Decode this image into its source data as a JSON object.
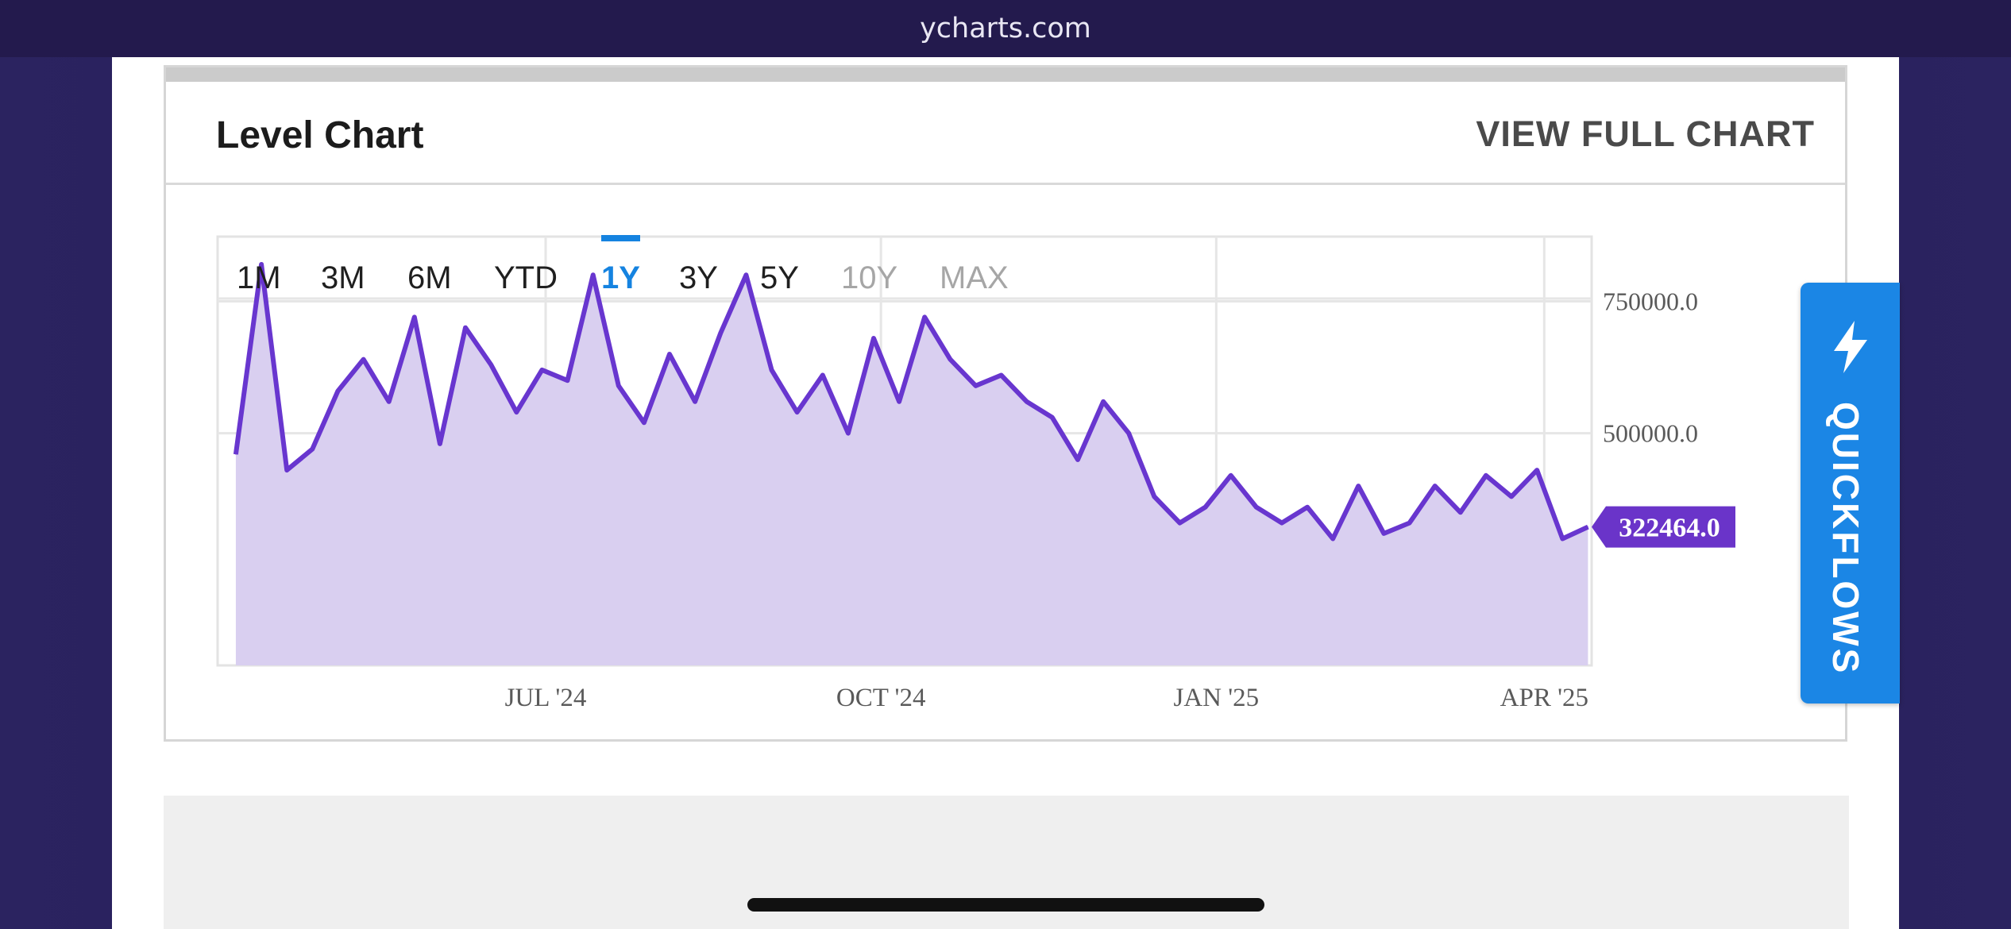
{
  "browser": {
    "url_label": "ycharts.com"
  },
  "card": {
    "title": "Level Chart",
    "view_full_label": "VIEW FULL CHART"
  },
  "range_tabs": [
    {
      "label": "1M",
      "state": "normal"
    },
    {
      "label": "3M",
      "state": "normal"
    },
    {
      "label": "6M",
      "state": "normal"
    },
    {
      "label": "YTD",
      "state": "normal"
    },
    {
      "label": "1Y",
      "state": "active"
    },
    {
      "label": "3Y",
      "state": "normal"
    },
    {
      "label": "5Y",
      "state": "normal"
    },
    {
      "label": "10Y",
      "state": "disabled"
    },
    {
      "label": "MAX",
      "state": "disabled"
    }
  ],
  "quickflows": {
    "label": "QUICKFLOWS",
    "icon": "lightning-bolt-icon"
  },
  "colors": {
    "line": "#6836cf",
    "fill": "#d9cff0",
    "accent": "#1583e0",
    "badge": "#6a34c9"
  },
  "chart_data": {
    "type": "area",
    "x_tick_labels": [
      "JUL '24",
      "OCT '24",
      "JAN '25",
      "APR '25"
    ],
    "y_tick_labels": [
      "750000.0",
      "500000.0"
    ],
    "ylim": [
      60000,
      820000
    ],
    "x_range": [
      "2024-04",
      "2025-04"
    ],
    "current_value_label": "322464.0",
    "grid": true,
    "x": [
      "2024-04-07",
      "2024-04-14",
      "2024-04-21",
      "2024-04-28",
      "2024-05-05",
      "2024-05-12",
      "2024-05-19",
      "2024-05-26",
      "2024-06-02",
      "2024-06-09",
      "2024-06-16",
      "2024-06-23",
      "2024-06-30",
      "2024-07-07",
      "2024-07-14",
      "2024-07-21",
      "2024-07-28",
      "2024-08-04",
      "2024-08-11",
      "2024-08-18",
      "2024-08-25",
      "2024-09-01",
      "2024-09-08",
      "2024-09-15",
      "2024-09-22",
      "2024-09-29",
      "2024-10-06",
      "2024-10-13",
      "2024-10-20",
      "2024-10-27",
      "2024-11-03",
      "2024-11-10",
      "2024-11-17",
      "2024-11-24",
      "2024-12-01",
      "2024-12-08",
      "2024-12-15",
      "2024-12-22",
      "2024-12-29",
      "2025-01-05",
      "2025-01-12",
      "2025-01-19",
      "2025-01-26",
      "2025-02-02",
      "2025-02-09",
      "2025-02-16",
      "2025-02-23",
      "2025-03-02",
      "2025-03-09",
      "2025-03-16",
      "2025-03-23",
      "2025-03-30",
      "2025-04-06",
      "2025-04-13"
    ],
    "series": [
      {
        "values": [
          460000,
          820000,
          430000,
          470000,
          580000,
          640000,
          560000,
          720000,
          480000,
          700000,
          630000,
          540000,
          620000,
          600000,
          800000,
          590000,
          520000,
          650000,
          560000,
          690000,
          800000,
          620000,
          540000,
          610000,
          500000,
          680000,
          560000,
          720000,
          640000,
          590000,
          610000,
          560000,
          530000,
          450000,
          560000,
          500000,
          380000,
          330000,
          360000,
          420000,
          360000,
          330000,
          360000,
          300000,
          400000,
          310000,
          330000,
          400000,
          350000,
          420000,
          380000,
          430000,
          300000,
          322464
        ]
      }
    ]
  }
}
